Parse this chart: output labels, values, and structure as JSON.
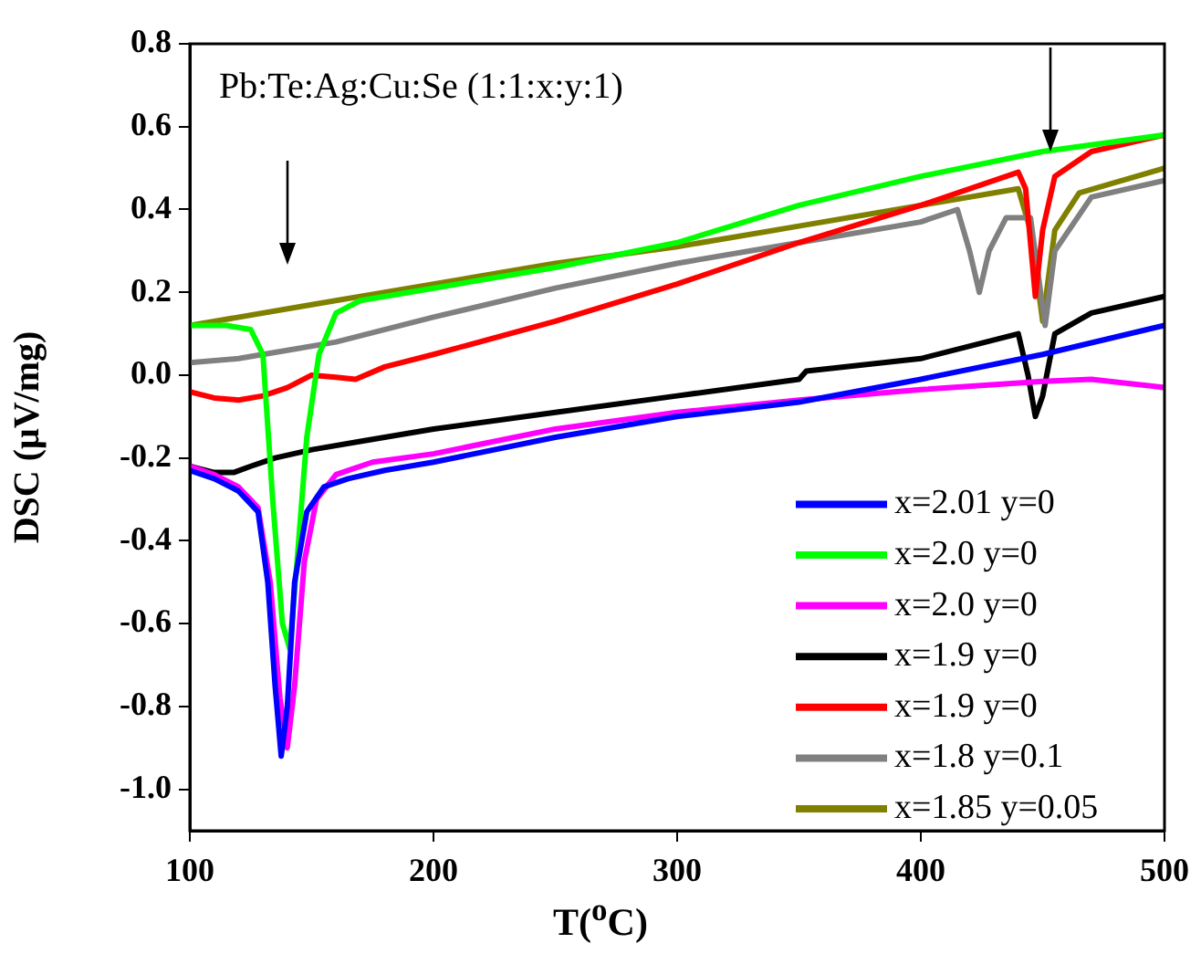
{
  "chart_data": {
    "type": "line",
    "xlabel": "T($^{o}$C)",
    "ylabel": "DSC (μV/mg)",
    "annotations": [
      "Pb:Te:Ag:Cu:Se (1:1:x:y:1)"
    ],
    "xlim": [
      100,
      500
    ],
    "xticks": [
      100,
      200,
      300,
      400,
      500
    ],
    "ylim": [
      -1.1,
      0.8
    ],
    "yticks": [
      {
        "value": 0.8,
        "label": "0.8"
      },
      {
        "value": 0.6,
        "label": "0.6"
      },
      {
        "value": 0.4,
        "label": "0.4"
      },
      {
        "value": 0.2,
        "label": "0.2"
      },
      {
        "value": 0,
        "label": "0.0"
      },
      {
        "value": -0.2,
        "label": "-0.2"
      },
      {
        "value": -0.4,
        "label": "-0.4"
      },
      {
        "value": -0.6,
        "label": "-0.6"
      },
      {
        "value": -0.8,
        "label": "-0.8"
      },
      {
        "value": -1,
        "label": "-1.0"
      }
    ],
    "grid": false,
    "legend": "bottom right",
    "marker": "none",
    "line_style": "solid",
    "series": [
      {
        "name": "x=2.01 y=0",
        "color": "#0000ff",
        "x": [
          100,
          110,
          120,
          128,
          132,
          135,
          137.5,
          140,
          143,
          148,
          155,
          165,
          180,
          200,
          250,
          300,
          350,
          400,
          450,
          500
        ],
        "values": [
          -0.23,
          -0.25,
          -0.28,
          -0.33,
          -0.5,
          -0.75,
          -0.92,
          -0.8,
          -0.5,
          -0.33,
          -0.27,
          -0.25,
          -0.23,
          -0.21,
          -0.15,
          -0.1,
          -0.065,
          -0.01,
          0.05,
          0.12
        ]
      },
      {
        "name": "x=2.0 y=0",
        "color": "#00ff00",
        "x": [
          100,
          115,
          125,
          130,
          134,
          138,
          141,
          144,
          148,
          153,
          160,
          170,
          200,
          250,
          300,
          350,
          400,
          450,
          500
        ],
        "values": [
          0.12,
          0.12,
          0.11,
          0.05,
          -0.3,
          -0.6,
          -0.66,
          -0.45,
          -0.15,
          0.05,
          0.15,
          0.18,
          0.21,
          0.26,
          0.32,
          0.41,
          0.48,
          0.54,
          0.58
        ]
      },
      {
        "name": "x=2.0 y=0",
        "color": "#ff00ff",
        "x": [
          100,
          110,
          120,
          128,
          133,
          137,
          140,
          143,
          147,
          152,
          160,
          175,
          200,
          250,
          300,
          350,
          400,
          450,
          470,
          500
        ],
        "values": [
          -0.22,
          -0.24,
          -0.27,
          -0.32,
          -0.5,
          -0.78,
          -0.9,
          -0.75,
          -0.45,
          -0.3,
          -0.24,
          -0.21,
          -0.19,
          -0.13,
          -0.09,
          -0.06,
          -0.035,
          -0.015,
          -0.01,
          -0.03
        ]
      },
      {
        "name": "x=1.9 y=0",
        "color": "#000000",
        "x": [
          100,
          110,
          118,
          125,
          135,
          150,
          170,
          200,
          250,
          300,
          350,
          353,
          400,
          440,
          444,
          447,
          450,
          455,
          470,
          500
        ],
        "values": [
          -0.22,
          -0.235,
          -0.235,
          -0.22,
          -0.2,
          -0.18,
          -0.16,
          -0.13,
          -0.09,
          -0.05,
          -0.01,
          0.01,
          0.04,
          0.1,
          0,
          -0.1,
          -0.05,
          0.1,
          0.15,
          0.19
        ]
      },
      {
        "name": "x=1.9 y=0",
        "color": "#ff0000",
        "x": [
          100,
          110,
          120,
          130,
          140,
          150,
          160,
          168,
          180,
          200,
          250,
          300,
          350,
          400,
          440,
          443,
          447,
          450,
          455,
          470,
          500
        ],
        "values": [
          -0.04,
          -0.055,
          -0.06,
          -0.05,
          -0.03,
          0,
          -0.005,
          -0.01,
          0.02,
          0.05,
          0.13,
          0.22,
          0.32,
          0.41,
          0.49,
          0.45,
          0.19,
          0.35,
          0.48,
          0.54,
          0.58
        ]
      },
      {
        "name": "x=1.8 y=0.1",
        "color": "#808080",
        "x": [
          100,
          120,
          140,
          160,
          200,
          250,
          300,
          350,
          400,
          415,
          420,
          424,
          428,
          435,
          445,
          448,
          451,
          455,
          470,
          500
        ],
        "values": [
          0.03,
          0.04,
          0.06,
          0.08,
          0.14,
          0.21,
          0.27,
          0.32,
          0.37,
          0.4,
          0.3,
          0.2,
          0.3,
          0.38,
          0.38,
          0.25,
          0.12,
          0.3,
          0.43,
          0.47
        ]
      },
      {
        "name": "x=1.85 y=0.05",
        "color": "#808000",
        "x": [
          100,
          150,
          200,
          250,
          300,
          350,
          400,
          440,
          445,
          450,
          455,
          465,
          500
        ],
        "values": [
          0.12,
          0.17,
          0.22,
          0.27,
          0.31,
          0.36,
          0.41,
          0.45,
          0.35,
          0.13,
          0.35,
          0.44,
          0.5
        ]
      }
    ]
  }
}
